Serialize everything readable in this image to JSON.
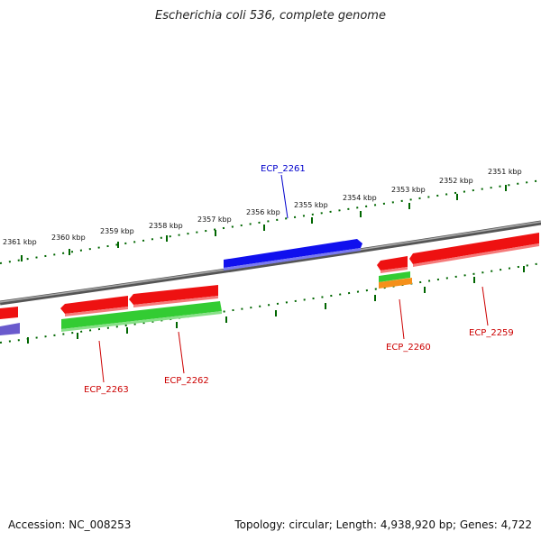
{
  "title": "Escherichia coli 536, complete genome",
  "footer": {
    "accession": "Accession: NC_008253",
    "summary": "Topology: circular; Length: 4,938,920 bp; Genes: 4,722"
  },
  "kbp_labels": [
    "2361 kbp",
    "2360 kbp",
    "2359 kbp",
    "2358 kbp",
    "2357 kbp",
    "2356 kbp",
    "2355 kbp",
    "2354 kbp",
    "2353 kbp",
    "2352 kbp",
    "2351 kbp"
  ],
  "gene_labels": {
    "ecp_2261": "ECP_2261",
    "ecp_2263": "ECP_2263",
    "ecp_2262": "ECP_2262",
    "ecp_2260": "ECP_2260",
    "ecp_2259": "ECP_2259"
  },
  "colors": {
    "red": "#ee1111",
    "blue": "#1010ee",
    "green": "#33cc33",
    "orange": "#f5901a",
    "purple": "#6a5acd",
    "label_red": "#cc0000",
    "label_blue": "#0000cc",
    "tick": "#006600",
    "backbone": "#888888"
  }
}
